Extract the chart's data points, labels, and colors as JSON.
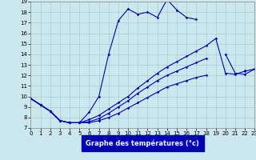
{
  "xlabel": "Graphe des températures (°c)",
  "xlim": [
    0,
    23
  ],
  "ylim": [
    7,
    19
  ],
  "xticks": [
    0,
    1,
    2,
    3,
    4,
    5,
    6,
    7,
    8,
    9,
    10,
    11,
    12,
    13,
    14,
    15,
    16,
    17,
    18,
    19,
    20,
    21,
    22,
    23
  ],
  "yticks": [
    7,
    8,
    9,
    10,
    11,
    12,
    13,
    14,
    15,
    16,
    17,
    18,
    19
  ],
  "bg_color": "#cce8ee",
  "grid_color": "#a8cece",
  "line_color": "#0000bb",
  "lines": [
    {
      "x": [
        0,
        1,
        2,
        3,
        4,
        5,
        6,
        7,
        8,
        9,
        10,
        11,
        12,
        13,
        14,
        15,
        16,
        17
      ],
      "y": [
        9.8,
        9.2,
        8.6,
        7.7,
        7.5,
        7.5,
        8.5,
        10.0,
        14.0,
        17.2,
        18.3,
        17.8,
        18.0,
        17.5,
        19.2,
        18.2,
        17.5,
        17.3
      ]
    },
    {
      "x": [
        0,
        1,
        2,
        3,
        4,
        5,
        6,
        7,
        8,
        9,
        10,
        11,
        12,
        13,
        14,
        15,
        16,
        17,
        18,
        19,
        20,
        21,
        22,
        23
      ],
      "y": [
        9.8,
        9.2,
        8.6,
        7.7,
        7.5,
        7.5,
        7.8,
        8.2,
        8.8,
        9.4,
        10.0,
        10.8,
        11.5,
        12.2,
        12.8,
        13.3,
        13.8,
        14.3,
        14.8,
        15.5,
        12.2,
        12.1,
        12.4,
        12.6
      ]
    },
    {
      "x": [
        0,
        1,
        2,
        3,
        4,
        5,
        6,
        7,
        8,
        9,
        10,
        11,
        12,
        13,
        14,
        15,
        16,
        17,
        18,
        19,
        20,
        21,
        22,
        23
      ],
      "y": [
        9.8,
        9.2,
        8.6,
        7.7,
        7.5,
        7.5,
        7.6,
        7.9,
        8.4,
        9.0,
        9.6,
        10.3,
        10.9,
        11.5,
        12.0,
        12.4,
        12.8,
        13.2,
        13.6,
        null,
        14.0,
        12.2,
        12.1,
        12.6
      ]
    },
    {
      "x": [
        0,
        1,
        2,
        3,
        4,
        5,
        6,
        7,
        8,
        9,
        10,
        11,
        12,
        13,
        14,
        15,
        16,
        17,
        18,
        19,
        20,
        21,
        22,
        23
      ],
      "y": [
        9.8,
        9.2,
        8.6,
        7.7,
        7.5,
        7.5,
        7.5,
        7.7,
        8.0,
        8.4,
        8.9,
        9.4,
        9.9,
        10.4,
        10.9,
        11.2,
        11.5,
        11.8,
        12.0,
        null,
        null,
        null,
        12.5,
        null
      ]
    }
  ]
}
